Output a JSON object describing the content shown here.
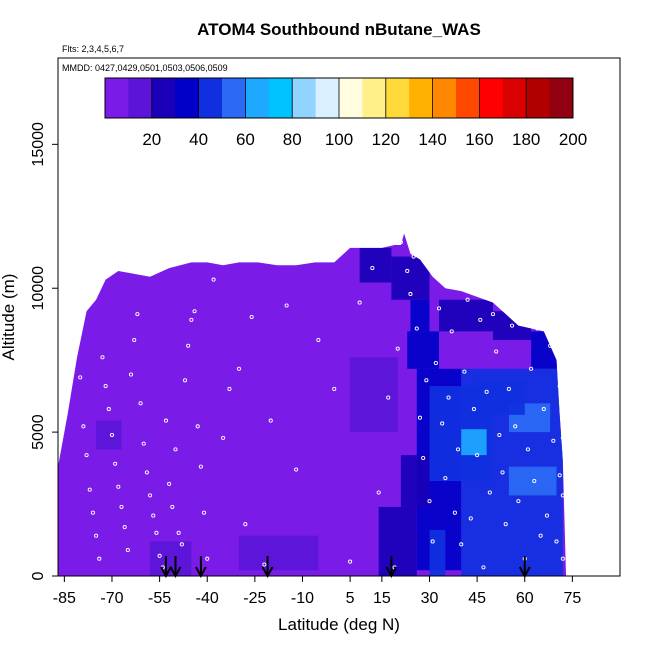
{
  "chart_data": {
    "type": "heatmap",
    "title": "ATOM4 Southbound nButane_WAS",
    "subtitle_flights": "Flts: 2,3,4,5,6,7",
    "subtitle_dates": "MMDD: 0427,0429,0501,0503,0506,0509",
    "xlabel": "Latitude (deg N)",
    "ylabel": "Altitude (m)",
    "xlim": [
      -87,
      90
    ],
    "ylim": [
      0,
      18000
    ],
    "xticks": [
      -85,
      -70,
      -55,
      -40,
      -25,
      -10,
      5,
      15,
      30,
      45,
      60,
      75
    ],
    "yticks": [
      0,
      5000,
      10000,
      15000
    ],
    "colorbar": {
      "min": 0,
      "max": 200,
      "ticks": [
        20,
        40,
        60,
        80,
        100,
        120,
        140,
        160,
        180,
        200
      ],
      "colors": [
        "#7a1be8",
        "#5b14d8",
        "#1a00b8",
        "#0000c8",
        "#1030e0",
        "#2a6af4",
        "#1ea8ff",
        "#00c4ff",
        "#90d4ff",
        "#d8f0ff",
        "#fffce0",
        "#fff08a",
        "#ffd83a",
        "#ffb000",
        "#ff8800",
        "#ff4800",
        "#ff0000",
        "#d80000",
        "#b00000",
        "#900010"
      ]
    },
    "background_value": 8,
    "curtain_top": [
      [
        -87,
        3800
      ],
      [
        -84,
        5600
      ],
      [
        -81,
        7600
      ],
      [
        -78,
        9200
      ],
      [
        -75,
        9600
      ],
      [
        -72,
        10300
      ],
      [
        -68,
        10600
      ],
      [
        -63,
        10500
      ],
      [
        -58,
        10400
      ],
      [
        -52,
        10700
      ],
      [
        -45,
        10900
      ],
      [
        -40,
        10900
      ],
      [
        -35,
        10800
      ],
      [
        -30,
        10900
      ],
      [
        -24,
        10900
      ],
      [
        -18,
        10800
      ],
      [
        -12,
        10800
      ],
      [
        -6,
        10900
      ],
      [
        0,
        10900
      ],
      [
        5,
        11400
      ],
      [
        10,
        11400
      ],
      [
        15,
        11400
      ],
      [
        19,
        11500
      ],
      [
        21,
        11500
      ],
      [
        22,
        11900
      ],
      [
        24,
        11200
      ],
      [
        27,
        11000
      ],
      [
        31,
        10400
      ],
      [
        35,
        10000
      ],
      [
        40,
        9900
      ],
      [
        45,
        9700
      ],
      [
        50,
        9500
      ],
      [
        54,
        9100
      ],
      [
        58,
        8700
      ],
      [
        62,
        8600
      ],
      [
        66,
        8500
      ],
      [
        68,
        8000
      ],
      [
        70,
        7500
      ],
      [
        71,
        5600
      ],
      [
        72,
        4000
      ],
      [
        73,
        0
      ]
    ],
    "patches": [
      {
        "lat": [
          8,
          18
        ],
        "alt": [
          10200,
          11400
        ],
        "value": 22
      },
      {
        "lat": [
          18,
          30
        ],
        "alt": [
          9600,
          11100
        ],
        "value": 25
      },
      {
        "lat": [
          24,
          30
        ],
        "alt": [
          8500,
          9600
        ],
        "value": 32
      },
      {
        "lat": [
          23,
          33
        ],
        "alt": [
          7200,
          8500
        ],
        "value": 30
      },
      {
        "lat": [
          33,
          50
        ],
        "alt": [
          8500,
          9600
        ],
        "value": 20
      },
      {
        "lat": [
          50,
          62
        ],
        "alt": [
          8200,
          9200
        ],
        "value": 22
      },
      {
        "lat": [
          62,
          72
        ],
        "alt": [
          7200,
          8500
        ],
        "value": 36
      },
      {
        "lat": [
          26,
          40
        ],
        "alt": [
          200,
          7200
        ],
        "value": 36
      },
      {
        "lat": [
          40,
          72
        ],
        "alt": [
          0,
          7200
        ],
        "value": 40
      },
      {
        "lat": [
          30,
          50
        ],
        "alt": [
          3300,
          6600
        ],
        "value": 44
      },
      {
        "lat": [
          40,
          48
        ],
        "alt": [
          4200,
          5100
        ],
        "value": 62
      },
      {
        "lat": [
          55,
          68
        ],
        "alt": [
          5000,
          6000
        ],
        "value": 58
      },
      {
        "lat": [
          55,
          70
        ],
        "alt": [
          2800,
          3800
        ],
        "value": 50
      },
      {
        "lat": [
          45,
          60
        ],
        "alt": [
          5600,
          6800
        ],
        "value": 44
      },
      {
        "lat": [
          14,
          26
        ],
        "alt": [
          0,
          2400
        ],
        "value": 28
      },
      {
        "lat": [
          21,
          30
        ],
        "alt": [
          2400,
          4200
        ],
        "value": 24
      },
      {
        "lat": [
          -75,
          -67
        ],
        "alt": [
          4400,
          5400
        ],
        "value": 18
      },
      {
        "lat": [
          -58,
          -45
        ],
        "alt": [
          0,
          1200
        ],
        "value": 14
      },
      {
        "lat": [
          -30,
          -5
        ],
        "alt": [
          200,
          1400
        ],
        "value": 12
      },
      {
        "lat": [
          5,
          20
        ],
        "alt": [
          5000,
          7600
        ],
        "value": 12
      },
      {
        "lat": [
          30,
          35
        ],
        "alt": [
          0,
          1600
        ],
        "value": 48
      }
    ],
    "sample_points": [
      [
        -80,
        6900
      ],
      [
        -79,
        5200
      ],
      [
        -78,
        4200
      ],
      [
        -77,
        3000
      ],
      [
        -76,
        2200
      ],
      [
        -75,
        1400
      ],
      [
        -74,
        600
      ],
      [
        -73,
        7600
      ],
      [
        -72,
        6600
      ],
      [
        -71,
        5800
      ],
      [
        -70,
        4900
      ],
      [
        -69,
        3900
      ],
      [
        -68,
        3100
      ],
      [
        -67,
        2400
      ],
      [
        -66,
        1700
      ],
      [
        -65,
        900
      ],
      [
        -64,
        7000
      ],
      [
        -63,
        8200
      ],
      [
        -62,
        9100
      ],
      [
        -61,
        6000
      ],
      [
        -60,
        4600
      ],
      [
        -59,
        3600
      ],
      [
        -58,
        2800
      ],
      [
        -57,
        2100
      ],
      [
        -56,
        1500
      ],
      [
        -55,
        700
      ],
      [
        -54,
        300
      ],
      [
        -53,
        5400
      ],
      [
        -52,
        3200
      ],
      [
        -51,
        2400
      ],
      [
        -50,
        4400
      ],
      [
        -49,
        1500
      ],
      [
        -48,
        1100
      ],
      [
        -47,
        6800
      ],
      [
        -46,
        8000
      ],
      [
        -45,
        8900
      ],
      [
        -44,
        9200
      ],
      [
        -43,
        5200
      ],
      [
        -42,
        3800
      ],
      [
        -41,
        2200
      ],
      [
        -40,
        600
      ],
      [
        -38,
        10300
      ],
      [
        -35,
        4800
      ],
      [
        -33,
        6500
      ],
      [
        -30,
        7200
      ],
      [
        -28,
        1800
      ],
      [
        -26,
        9000
      ],
      [
        -22,
        400
      ],
      [
        -20,
        5400
      ],
      [
        -15,
        9400
      ],
      [
        -12,
        3700
      ],
      [
        -5,
        8200
      ],
      [
        0,
        6500
      ],
      [
        5,
        500
      ],
      [
        8,
        9500
      ],
      [
        12,
        10700
      ],
      [
        14,
        2900
      ],
      [
        17,
        6200
      ],
      [
        19,
        300
      ],
      [
        20,
        7900
      ],
      [
        21,
        11600
      ],
      [
        22,
        12100
      ],
      [
        23,
        10600
      ],
      [
        24,
        9800
      ],
      [
        25,
        11100
      ],
      [
        26,
        8600
      ],
      [
        27,
        5500
      ],
      [
        28,
        4100
      ],
      [
        29,
        6800
      ],
      [
        30,
        2600
      ],
      [
        31,
        1200
      ],
      [
        32,
        7400
      ],
      [
        33,
        9300
      ],
      [
        34,
        5300
      ],
      [
        35,
        3400
      ],
      [
        36,
        6200
      ],
      [
        37,
        8500
      ],
      [
        38,
        2200
      ],
      [
        39,
        4400
      ],
      [
        40,
        1100
      ],
      [
        41,
        7100
      ],
      [
        42,
        9600
      ],
      [
        43,
        2000
      ],
      [
        44,
        5800
      ],
      [
        45,
        4200
      ],
      [
        46,
        8900
      ],
      [
        47,
        300
      ],
      [
        48,
        6400
      ],
      [
        49,
        2900
      ],
      [
        50,
        9100
      ],
      [
        51,
        7800
      ],
      [
        52,
        4900
      ],
      [
        53,
        3600
      ],
      [
        54,
        1800
      ],
      [
        55,
        6500
      ],
      [
        56,
        8700
      ],
      [
        57,
        5200
      ],
      [
        58,
        2600
      ],
      [
        59,
        9000
      ],
      [
        60,
        600
      ],
      [
        61,
        4400
      ],
      [
        62,
        7200
      ],
      [
        63,
        3300
      ],
      [
        64,
        8600
      ],
      [
        65,
        1400
      ],
      [
        66,
        5800
      ],
      [
        67,
        2100
      ],
      [
        68,
        8000
      ],
      [
        69,
        4700
      ],
      [
        70,
        1200
      ],
      [
        71,
        3500
      ],
      [
        72,
        600
      ],
      [
        72,
        4800
      ],
      [
        72,
        2800
      ],
      [
        71,
        6600
      ]
    ],
    "flight_markers": [
      -53,
      -50,
      -42,
      -21,
      18,
      60
    ]
  }
}
